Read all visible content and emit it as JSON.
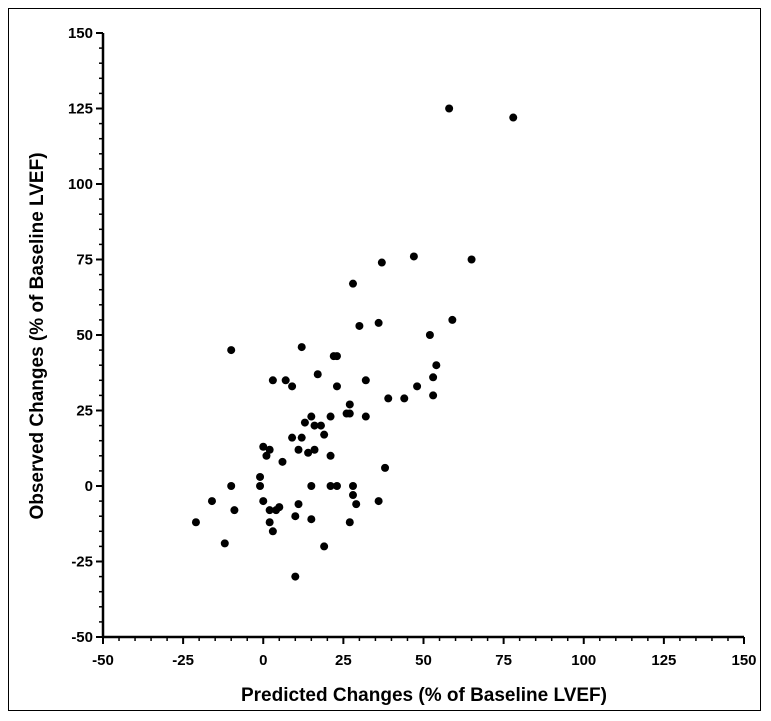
{
  "chart_data": {
    "type": "scatter",
    "title": "",
    "xlabel": "Predicted Changes (% of Baseline LVEF)",
    "ylabel": "Observed Changes (% of Baseline LVEF)",
    "xlim": [
      -50,
      150
    ],
    "ylim": [
      -50,
      150
    ],
    "xticks": [
      -50,
      -25,
      0,
      25,
      50,
      75,
      100,
      125,
      150
    ],
    "yticks": [
      -50,
      -25,
      0,
      25,
      50,
      75,
      100,
      125,
      150
    ],
    "minor_per_major": 5,
    "grid": false,
    "legend": false,
    "marker_color": "#000000",
    "points": [
      [
        -10,
        45
      ],
      [
        -21,
        -12
      ],
      [
        -16,
        -5
      ],
      [
        -12,
        -19
      ],
      [
        -10,
        0
      ],
      [
        -9,
        -8
      ],
      [
        -1,
        3
      ],
      [
        -1,
        0
      ],
      [
        0,
        13
      ],
      [
        0,
        -5
      ],
      [
        1,
        10
      ],
      [
        2,
        12
      ],
      [
        2,
        -8
      ],
      [
        2,
        -12
      ],
      [
        3,
        -15
      ],
      [
        3,
        35
      ],
      [
        4,
        -8
      ],
      [
        5,
        -7
      ],
      [
        6,
        8
      ],
      [
        7,
        35
      ],
      [
        9,
        33
      ],
      [
        9,
        16
      ],
      [
        10,
        -10
      ],
      [
        10,
        -30
      ],
      [
        11,
        -6
      ],
      [
        11,
        12
      ],
      [
        12,
        46
      ],
      [
        12,
        16
      ],
      [
        13,
        21
      ],
      [
        14,
        11
      ],
      [
        15,
        23
      ],
      [
        15,
        -11
      ],
      [
        15,
        0
      ],
      [
        16,
        20
      ],
      [
        16,
        12
      ],
      [
        17,
        37
      ],
      [
        18,
        20
      ],
      [
        19,
        17
      ],
      [
        19,
        -20
      ],
      [
        21,
        23
      ],
      [
        21,
        10
      ],
      [
        21,
        0
      ],
      [
        22,
        43
      ],
      [
        23,
        43
      ],
      [
        23,
        33
      ],
      [
        23,
        0
      ],
      [
        26,
        24
      ],
      [
        27,
        27
      ],
      [
        27,
        24
      ],
      [
        27,
        -12
      ],
      [
        28,
        67
      ],
      [
        28,
        -3
      ],
      [
        28,
        0
      ],
      [
        29,
        -6
      ],
      [
        30,
        53
      ],
      [
        32,
        23
      ],
      [
        32,
        35
      ],
      [
        36,
        54
      ],
      [
        36,
        -5
      ],
      [
        37,
        74
      ],
      [
        38,
        6
      ],
      [
        39,
        29
      ],
      [
        44,
        29
      ],
      [
        47,
        76
      ],
      [
        48,
        33
      ],
      [
        52,
        50
      ],
      [
        53,
        36
      ],
      [
        53,
        30
      ],
      [
        54,
        40
      ],
      [
        58,
        125
      ],
      [
        59,
        55
      ],
      [
        65,
        75
      ],
      [
        78,
        122
      ]
    ]
  }
}
